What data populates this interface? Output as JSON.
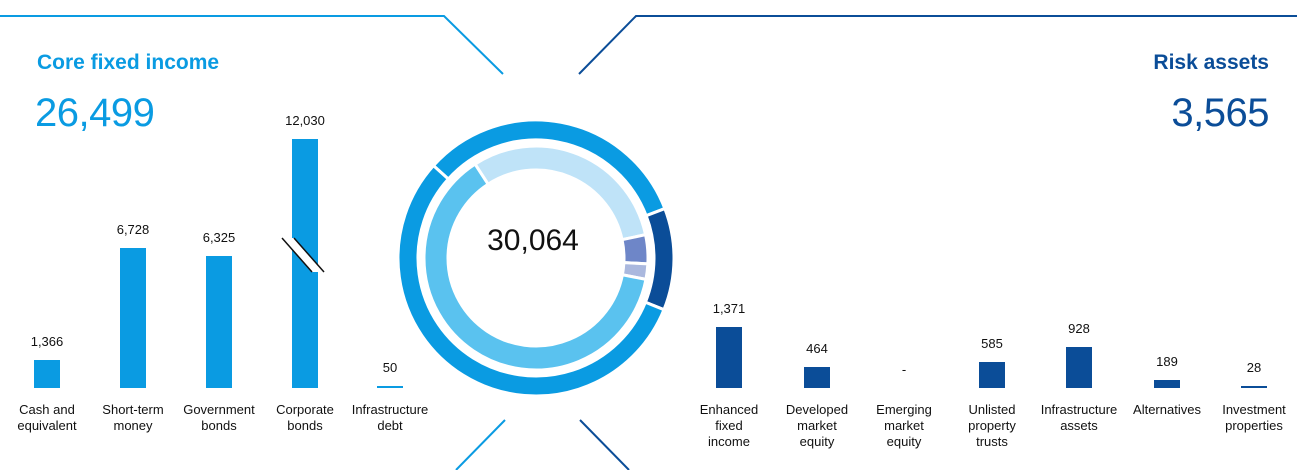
{
  "core": {
    "title": "Core fixed income",
    "total": "26,499",
    "color": "#0a9be2"
  },
  "risk": {
    "title": "Risk assets",
    "total": "3,565",
    "color": "#0b4d98"
  },
  "donut": {
    "total": "30,064",
    "outer_colors": [
      "#0a9be2",
      "#0b4d98"
    ],
    "inner_colors": [
      "#bfe3f8",
      "#5ac2ef",
      "#6e86c8",
      "#aab8de"
    ]
  },
  "chart_data": [
    {
      "type": "bar",
      "title": "Core fixed income",
      "categories": [
        "Cash and equivalent",
        "Short-term money",
        "Government bonds",
        "Corporate bonds",
        "Infrastructure debt"
      ],
      "category_lines": [
        [
          "Cash and",
          "equivalent"
        ],
        [
          "Short-term",
          "money"
        ],
        [
          "Government",
          "bonds"
        ],
        [
          "Corporate",
          "bonds"
        ],
        [
          "Infrastructure",
          "debt"
        ]
      ],
      "values": [
        1366,
        6728,
        6325,
        12030,
        50
      ],
      "value_labels": [
        "1,366",
        "6,728",
        "6,325",
        "12,030",
        "50"
      ],
      "broken_axis_category": "Corporate bonds",
      "color": "#0a9be2"
    },
    {
      "type": "bar",
      "title": "Risk assets",
      "categories": [
        "Enhanced fixed income",
        "Developed market equity",
        "Emerging market equity",
        "Unlisted property trusts",
        "Infrastructure assets",
        "Alternatives",
        "Investment properties"
      ],
      "category_lines": [
        [
          "Enhanced",
          "fixed",
          "income"
        ],
        [
          "Developed",
          "market",
          "equity"
        ],
        [
          "Emerging",
          "market",
          "equity"
        ],
        [
          "Unlisted",
          "property",
          "trusts"
        ],
        [
          "Infrastructure",
          "assets"
        ],
        [
          "Alternatives"
        ],
        [
          "Investment",
          "properties"
        ]
      ],
      "values": [
        1371,
        464,
        0,
        585,
        928,
        189,
        28
      ],
      "value_labels": [
        "1,371",
        "464",
        "-",
        "585",
        "928",
        "189",
        "28"
      ],
      "color": "#0b4d98"
    }
  ]
}
